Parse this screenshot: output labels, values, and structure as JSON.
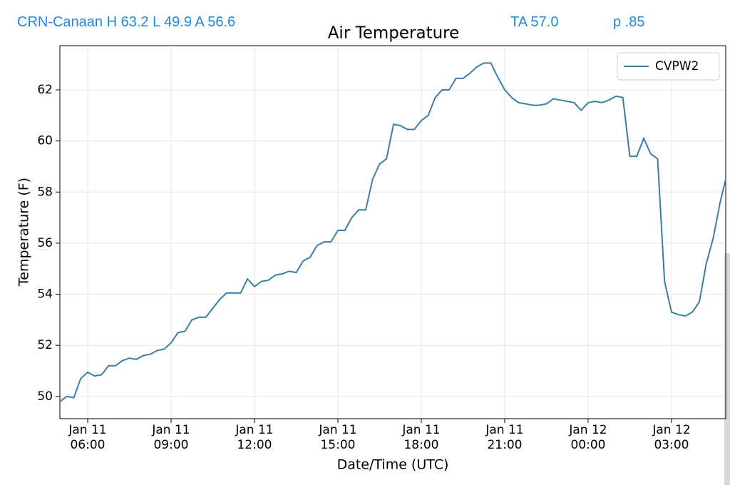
{
  "header": {
    "station": "CRN-Canaan H 63.2 L 49.9 A 56.6",
    "ta": "TA 57.0",
    "p": "p .85"
  },
  "chart_data": {
    "type": "line",
    "title": "Air Temperature",
    "xlabel": "Date/Time (UTC)",
    "ylabel": "Temperature (F)",
    "x": [
      "Jan 11 05:00",
      "Jan 11 05:15",
      "Jan 11 05:30",
      "Jan 11 05:45",
      "Jan 11 06:00",
      "Jan 11 06:15",
      "Jan 11 06:30",
      "Jan 11 06:45",
      "Jan 11 07:00",
      "Jan 11 07:15",
      "Jan 11 07:30",
      "Jan 11 07:45",
      "Jan 11 08:00",
      "Jan 11 08:15",
      "Jan 11 08:30",
      "Jan 11 08:45",
      "Jan 11 09:00",
      "Jan 11 09:15",
      "Jan 11 09:30",
      "Jan 11 09:45",
      "Jan 11 10:00",
      "Jan 11 10:15",
      "Jan 11 10:30",
      "Jan 11 10:45",
      "Jan 11 11:00",
      "Jan 11 11:15",
      "Jan 11 11:30",
      "Jan 11 11:45",
      "Jan 11 12:00",
      "Jan 11 12:15",
      "Jan 11 12:30",
      "Jan 11 12:45",
      "Jan 11 13:00",
      "Jan 11 13:15",
      "Jan 11 13:30",
      "Jan 11 13:45",
      "Jan 11 14:00",
      "Jan 11 14:15",
      "Jan 11 14:30",
      "Jan 11 14:45",
      "Jan 11 15:00",
      "Jan 11 15:15",
      "Jan 11 15:30",
      "Jan 11 15:45",
      "Jan 11 16:00",
      "Jan 11 16:15",
      "Jan 11 16:30",
      "Jan 11 16:45",
      "Jan 11 17:00",
      "Jan 11 17:15",
      "Jan 11 17:30",
      "Jan 11 17:45",
      "Jan 11 18:00",
      "Jan 11 18:15",
      "Jan 11 18:30",
      "Jan 11 18:45",
      "Jan 11 19:00",
      "Jan 11 19:15",
      "Jan 11 19:30",
      "Jan 11 19:45",
      "Jan 11 20:00",
      "Jan 11 20:15",
      "Jan 11 20:30",
      "Jan 11 20:45",
      "Jan 11 21:00",
      "Jan 11 21:15",
      "Jan 11 21:30",
      "Jan 11 21:45",
      "Jan 11 22:00",
      "Jan 11 22:15",
      "Jan 11 22:30",
      "Jan 11 22:45",
      "Jan 11 23:00",
      "Jan 11 23:15",
      "Jan 11 23:30",
      "Jan 11 23:45",
      "Jan 12 00:00",
      "Jan 12 00:15",
      "Jan 12 00:30",
      "Jan 12 00:45",
      "Jan 12 01:00",
      "Jan 12 01:15",
      "Jan 12 01:30",
      "Jan 12 01:45",
      "Jan 12 02:00",
      "Jan 12 02:15",
      "Jan 12 02:30",
      "Jan 12 02:45",
      "Jan 12 03:00",
      "Jan 12 03:15",
      "Jan 12 03:30",
      "Jan 12 03:45",
      "Jan 12 04:00",
      "Jan 12 04:15",
      "Jan 12 04:30",
      "Jan 12 04:45",
      "Jan 12 04:57"
    ],
    "series": [
      {
        "name": "CVPW2",
        "color": "#3a7fa6",
        "values": [
          49.8,
          50.0,
          49.95,
          50.7,
          50.95,
          50.8,
          50.85,
          51.2,
          51.2,
          51.4,
          51.5,
          51.45,
          51.6,
          51.65,
          51.8,
          51.85,
          52.1,
          52.5,
          52.55,
          53.0,
          53.1,
          53.1,
          53.45,
          53.8,
          54.05,
          54.05,
          54.05,
          54.6,
          54.3,
          54.5,
          54.55,
          54.75,
          54.8,
          54.9,
          54.85,
          55.3,
          55.45,
          55.9,
          56.05,
          56.05,
          56.5,
          56.5,
          57.0,
          57.3,
          57.3,
          58.5,
          59.1,
          59.3,
          60.65,
          60.6,
          60.45,
          60.45,
          60.8,
          61.0,
          61.7,
          62.0,
          62.0,
          62.45,
          62.45,
          62.65,
          62.9,
          63.05,
          63.05,
          62.5,
          62.0,
          61.7,
          61.5,
          61.45,
          61.4,
          61.4,
          61.45,
          61.65,
          61.6,
          61.55,
          61.5,
          61.2,
          61.5,
          61.55,
          61.5,
          61.6,
          61.75,
          61.7,
          59.4,
          59.4,
          60.1,
          59.5,
          59.3,
          54.5,
          53.3,
          53.2,
          53.15,
          53.3,
          53.7,
          55.2,
          56.2,
          57.6,
          58.5
        ]
      }
    ],
    "xlim": [
      "Jan 11 05:00",
      "Jan 12 04:57"
    ],
    "xticks": [
      "Jan 11 06:00",
      "Jan 11 09:00",
      "Jan 11 12:00",
      "Jan 11 15:00",
      "Jan 11 18:00",
      "Jan 11 21:00",
      "Jan 12 00:00",
      "Jan 12 03:00"
    ],
    "ylim": [
      49.13,
      63.73
    ],
    "yticks": [
      50,
      52,
      54,
      56,
      58,
      60,
      62
    ],
    "grid": true,
    "legend": "upper right"
  }
}
